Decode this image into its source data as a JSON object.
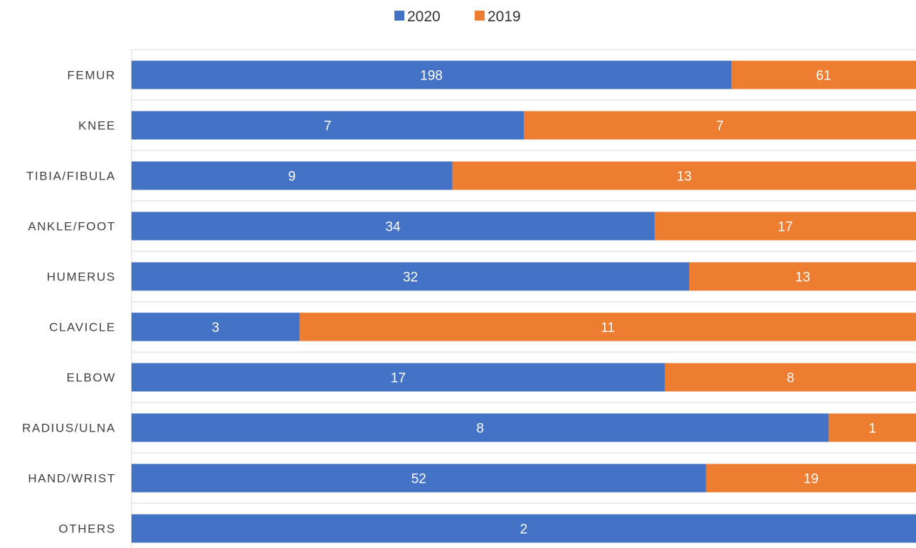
{
  "chart_data": {
    "type": "bar",
    "orientation": "horizontal",
    "stacking": "percent",
    "title": "",
    "xlabel": "",
    "ylabel": "",
    "legend_position": "top-center",
    "grid": true,
    "categories": [
      "FEMUR",
      "KNEE",
      "TIBIA/FIBULA",
      "ANKLE/FOOT",
      "HUMERUS",
      "CLAVICLE",
      "ELBOW",
      "RADIUS/ULNA",
      "HAND/WRIST",
      "OTHERS"
    ],
    "series": [
      {
        "name": "2020",
        "color": "#4472C4",
        "values": [
          198,
          7,
          9,
          34,
          32,
          3,
          17,
          8,
          52,
          2
        ]
      },
      {
        "name": "2019",
        "color": "#ED7D31",
        "values": [
          61,
          7,
          13,
          17,
          13,
          11,
          8,
          1,
          19,
          0
        ]
      }
    ]
  }
}
